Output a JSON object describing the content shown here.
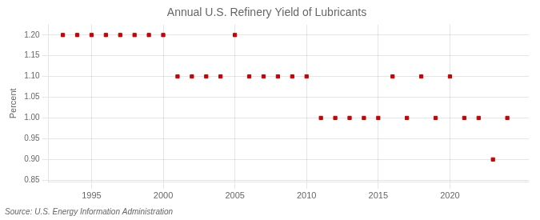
{
  "chart_data": {
    "type": "scatter",
    "title": "Annual U.S. Refinery Yield of Lubricants",
    "ylabel": "Percent",
    "annotations": [
      "Source: U.S. Energy Information Administration"
    ],
    "x": [
      1993,
      1994,
      1995,
      1996,
      1997,
      1998,
      1999,
      2000,
      2001,
      2002,
      2003,
      2004,
      2005,
      2006,
      2007,
      2008,
      2009,
      2010,
      2011,
      2012,
      2013,
      2014,
      2015,
      2016,
      2017,
      2018,
      2019,
      2020,
      2021,
      2022,
      2023,
      2024
    ],
    "values": [
      1.2,
      1.2,
      1.2,
      1.2,
      1.2,
      1.2,
      1.2,
      1.2,
      1.1,
      1.1,
      1.1,
      1.1,
      1.2,
      1.1,
      1.1,
      1.1,
      1.1,
      1.1,
      1.0,
      1.0,
      1.0,
      1.0,
      1.0,
      1.1,
      1.0,
      1.1,
      1.0,
      1.1,
      1.0,
      1.0,
      0.9,
      1.0
    ],
    "color": "#cc0000",
    "marker": "square",
    "xlim": [
      1992.0,
      2025.5
    ],
    "xticks": [
      1995,
      2000,
      2005,
      2010,
      2015,
      2020
    ],
    "ylim": [
      0.845,
      1.225
    ],
    "yticks": [
      0.85,
      {
        "value": 0.9,
        "label": "0.90"
      },
      0.95,
      {
        "value": 1.0,
        "label": "1.00"
      },
      1.05,
      {
        "value": 1.1,
        "label": "1.10"
      },
      1.15,
      {
        "value": 1.2,
        "label": "1.20"
      }
    ],
    "grid": true
  }
}
